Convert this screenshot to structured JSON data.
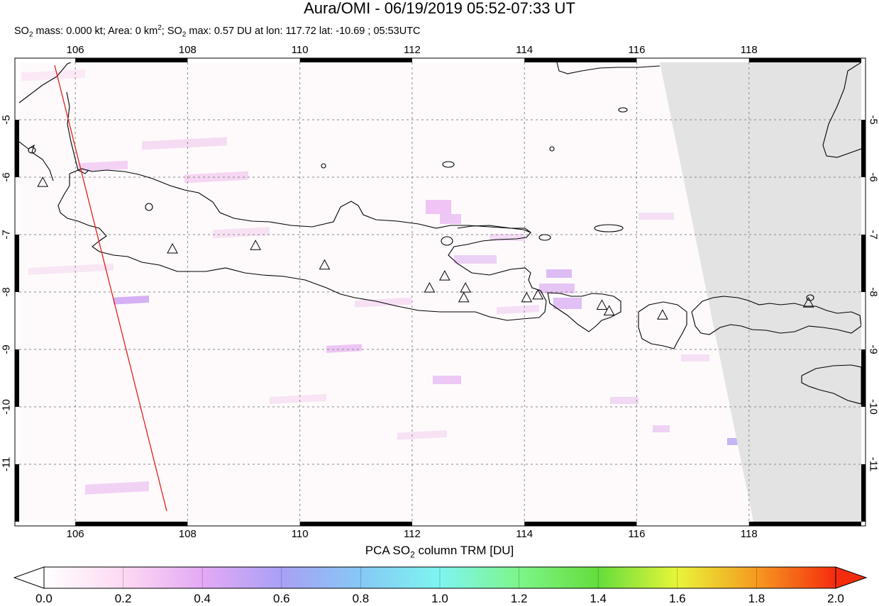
{
  "header": {
    "title": "Aura/OMI - 06/19/2019 05:52-07:33 UT",
    "so2_label": "SO",
    "mass_text": " mass: 0.000 kt; Area: 0 km",
    "so2_max_text": "; SO",
    "max_rest_text": " max: 0.57 DU at lon: 117.72 lat: -10.69 ; 05:53UTC",
    "sub2": "2",
    "sup2": "2"
  },
  "map": {
    "lon_range": [
      105.0,
      120.0
    ],
    "lat_range": [
      -12.0,
      -4.0
    ],
    "x_ticks": [
      "106",
      "108",
      "110",
      "112",
      "114",
      "116",
      "118"
    ],
    "x_tick_values": [
      106,
      108,
      110,
      112,
      114,
      116,
      118
    ],
    "y_ticks": [
      "-5",
      "-6",
      "-7",
      "-8",
      "-9",
      "-10",
      "-11"
    ],
    "y_tick_values": [
      -5,
      -6,
      -7,
      -8,
      -9,
      -10,
      -11
    ],
    "grid": true,
    "no_data_color": "#e3e3e3",
    "orbit_track_color": "#e0201b",
    "volcanoes": [
      {
        "lon": 105.42,
        "lat": -6.1
      },
      {
        "lon": 107.73,
        "lat": -7.26
      },
      {
        "lon": 109.21,
        "lat": -7.2
      },
      {
        "lon": 110.44,
        "lat": -7.54
      },
      {
        "lon": 112.31,
        "lat": -7.94
      },
      {
        "lon": 112.58,
        "lat": -7.73
      },
      {
        "lon": 112.95,
        "lat": -7.94
      },
      {
        "lon": 112.92,
        "lat": -8.11
      },
      {
        "lon": 114.04,
        "lat": -8.11
      },
      {
        "lon": 114.24,
        "lat": -8.06
      },
      {
        "lon": 115.38,
        "lat": -8.24
      },
      {
        "lon": 115.51,
        "lat": -8.34
      },
      {
        "lon": 116.46,
        "lat": -8.41
      },
      {
        "lon": 119.06,
        "lat": -8.2
      }
    ]
  },
  "colorbar": {
    "title_prefix": "PCA SO",
    "title_sub": "2",
    "title_suffix": " column TRM [DU]",
    "ticks": [
      "0.0",
      "0.2",
      "0.4",
      "0.6",
      "0.8",
      "1.0",
      "1.2",
      "1.4",
      "1.6",
      "1.8",
      "2.0"
    ],
    "min": 0.0,
    "max": 2.0,
    "colors": [
      "#ffffff",
      "#fdd9f2",
      "#e4a9f5",
      "#a9a0f5",
      "#86c8f5",
      "#7ef5f0",
      "#7ef58a",
      "#64dd3c",
      "#e8f53a",
      "#f59a20",
      "#f52c0e"
    ]
  }
}
